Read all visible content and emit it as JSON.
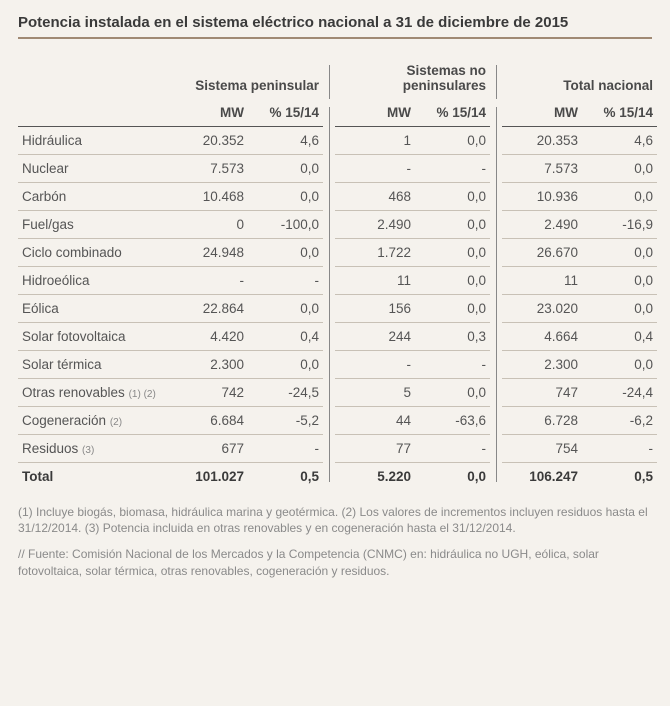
{
  "title": "Potencia instalada en el sistema eléctrico nacional a 31 de diciembre de 2015",
  "colgroups": [
    {
      "label": "Sistema peninsular",
      "sub": [
        "MW",
        "% 15/14"
      ]
    },
    {
      "label": "Sistemas no peninsulares",
      "sub": [
        "MW",
        "% 15/14"
      ]
    },
    {
      "label": "Total nacional",
      "sub": [
        "MW",
        "% 15/14"
      ]
    }
  ],
  "rows": [
    {
      "label": "Hidráulica",
      "refs": "",
      "v": [
        "20.352",
        "4,6",
        "1",
        "0,0",
        "20.353",
        "4,6"
      ]
    },
    {
      "label": "Nuclear",
      "refs": "",
      "v": [
        "7.573",
        "0,0",
        "-",
        "-",
        "7.573",
        "0,0"
      ]
    },
    {
      "label": "Carbón",
      "refs": "",
      "v": [
        "10.468",
        "0,0",
        "468",
        "0,0",
        "10.936",
        "0,0"
      ]
    },
    {
      "label": "Fuel/gas",
      "refs": "",
      "v": [
        "0",
        "-100,0",
        "2.490",
        "0,0",
        "2.490",
        "-16,9"
      ]
    },
    {
      "label": "Ciclo combinado",
      "refs": "",
      "v": [
        "24.948",
        "0,0",
        "1.722",
        "0,0",
        "26.670",
        "0,0"
      ]
    },
    {
      "label": "Hidroeólica",
      "refs": "",
      "v": [
        "-",
        "-",
        "11",
        "0,0",
        "11",
        "0,0"
      ]
    },
    {
      "label": "Eólica",
      "refs": "",
      "v": [
        "22.864",
        "0,0",
        "156",
        "0,0",
        "23.020",
        "0,0"
      ]
    },
    {
      "label": "Solar fotovoltaica",
      "refs": "",
      "v": [
        "4.420",
        "0,4",
        "244",
        "0,3",
        "4.664",
        "0,4"
      ]
    },
    {
      "label": "Solar térmica",
      "refs": "",
      "v": [
        "2.300",
        "0,0",
        "-",
        "-",
        "2.300",
        "0,0"
      ]
    },
    {
      "label": "Otras renovables",
      "refs": "(1) (2)",
      "v": [
        "742",
        "-24,5",
        "5",
        "0,0",
        "747",
        "-24,4"
      ]
    },
    {
      "label": "Cogeneración",
      "refs": "(2)",
      "v": [
        "6.684",
        "-5,2",
        "44",
        "-63,6",
        "6.728",
        "-6,2"
      ]
    },
    {
      "label": "Residuos",
      "refs": "(3)",
      "v": [
        "677",
        "-",
        "77",
        "-",
        "754",
        "-"
      ]
    }
  ],
  "total": {
    "label": "Total",
    "v": [
      "101.027",
      "0,5",
      "5.220",
      "0,0",
      "106.247",
      "0,5"
    ]
  },
  "footnotes": "(1) Incluye biogás, biomasa, hidráulica marina y geotérmica. (2) Los valores de incrementos incluyen residuos hasta el 31/12/2014. (3) Potencia incluida en otras renovables y en cogeneración hasta el 31/12/2014.",
  "source": "// Fuente: Comisión Nacional de los Mercados y la Competencia (CNMC) en: hidráulica no UGH, eólica, solar fotovoltaica, solar térmica, otras renovables, cogeneración y residuos."
}
